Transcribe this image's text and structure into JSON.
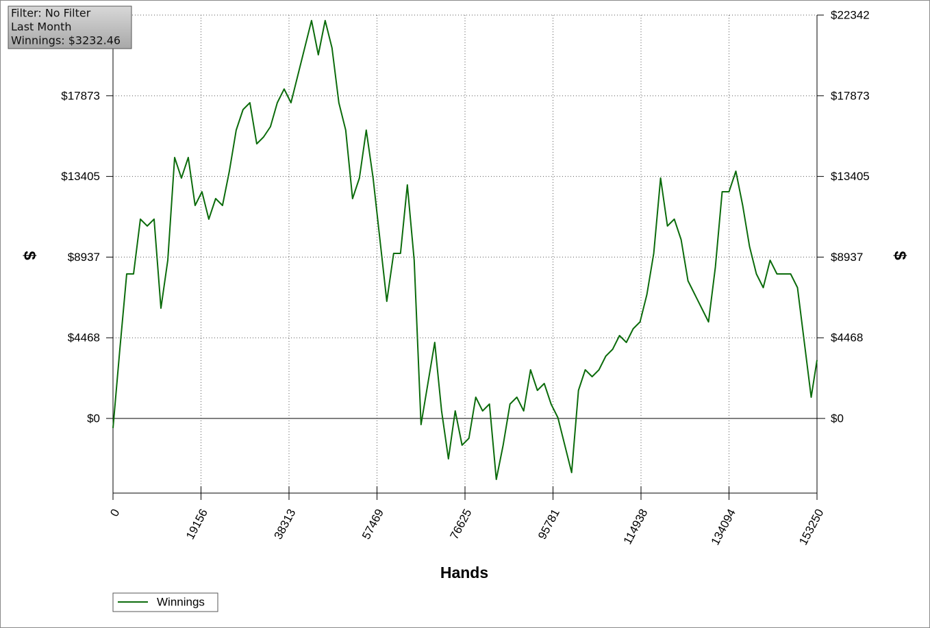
{
  "chart_data": {
    "type": "line",
    "annotations": [
      "Filter: No Filter",
      "Last Month",
      "Winnings: $3232.46"
    ],
    "x_label": "Hands",
    "y_label": "$",
    "y2_label": "$",
    "x": [
      0,
      1490,
      2980,
      4470,
      5960,
      7450,
      8940,
      10430,
      11920,
      13410,
      14900,
      16390,
      17880,
      19370,
      20860,
      22350,
      23840,
      25330,
      26820,
      28310,
      29800,
      31290,
      32780,
      34270,
      35760,
      37250,
      38740,
      40230,
      41720,
      43210,
      44700,
      46190,
      47680,
      49170,
      50660,
      52150,
      53640,
      55130,
      56620,
      58110,
      59600,
      61090,
      62580,
      64070,
      65560,
      67050,
      68540,
      70030,
      71520,
      73010,
      74500,
      75990,
      77480,
      78970,
      80460,
      81950,
      83440,
      84930,
      86420,
      87910,
      89400,
      90890,
      92380,
      93870,
      95360,
      96850,
      98340,
      99830,
      101320,
      102810,
      104300,
      105790,
      107280,
      108770,
      110260,
      111750,
      113240,
      114730,
      116220,
      117710,
      119200,
      120690,
      122180,
      123670,
      125160,
      126650,
      128140,
      129630,
      131120,
      132610,
      134100,
      135590,
      137080,
      138570,
      140060,
      141550,
      143040,
      144530,
      146020,
      147510,
      149000,
      150490,
      151980,
      153250
    ],
    "series": [
      {
        "name": "Winnings",
        "color": "#0b6b0b",
        "values": [
          -531,
          3831,
          8003,
          8003,
          11038,
          10658,
          11038,
          6107,
          8762,
          14451,
          13313,
          14451,
          11796,
          12555,
          11038,
          12176,
          11796,
          13693,
          15969,
          17106,
          17486,
          15210,
          15589,
          16158,
          17486,
          18244,
          17486,
          19003,
          20520,
          22037,
          20141,
          22037,
          20520,
          17486,
          15969,
          12176,
          13313,
          15969,
          13313,
          9900,
          6486,
          9141,
          9141,
          12934,
          8762,
          -341,
          1934,
          4210,
          417,
          -2238,
          417,
          -1479,
          -1100,
          1176,
          417,
          797,
          -3376,
          -1479,
          797,
          1176,
          417,
          2693,
          1555,
          1934,
          797,
          38,
          -1479,
          -2996,
          1555,
          2693,
          2314,
          2693,
          3452,
          3831,
          4590,
          4210,
          4969,
          5348,
          6865,
          9141,
          13313,
          10658,
          11038,
          9900,
          7624,
          6865,
          6107,
          5348,
          8383,
          12555,
          12555,
          13693,
          11796,
          9520,
          8003,
          7245,
          8762,
          8003,
          8003,
          8003,
          7245,
          4210,
          1176,
          3232.46
        ]
      }
    ],
    "xlim": [
      0,
      153250
    ],
    "xticks": [
      0,
      19156,
      38313,
      57469,
      76625,
      95781,
      114938,
      134094,
      153250
    ],
    "ylim": [
      -4134,
      22342
    ],
    "yticks": [
      {
        "value": 0,
        "label": "$0"
      },
      {
        "value": 4468,
        "label": "$4468"
      },
      {
        "value": 8937,
        "label": "$8937"
      },
      {
        "value": 13405,
        "label": "$13405"
      },
      {
        "value": 17873,
        "label": "$17873"
      },
      {
        "value": 22342,
        "label": "$22342"
      }
    ],
    "grid": true
  }
}
